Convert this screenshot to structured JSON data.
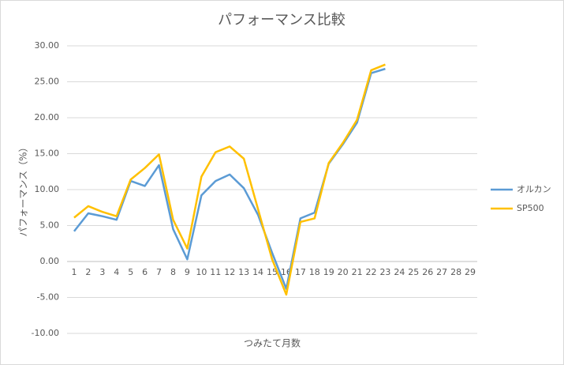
{
  "chart_data": {
    "type": "line",
    "title": "パフォーマンス比較",
    "x_label": "つみたて月数",
    "y_label": "パフォーマンス（%）",
    "categories": [
      "1",
      "2",
      "3",
      "4",
      "5",
      "6",
      "7",
      "8",
      "9",
      "10",
      "11",
      "12",
      "13",
      "14",
      "15",
      "16",
      "17",
      "18",
      "19",
      "20",
      "21",
      "22",
      "23",
      "24",
      "25",
      "26",
      "27",
      "28",
      "29"
    ],
    "series": [
      {
        "name": "オルカン",
        "color": "#5b9bd5",
        "values": [
          4.2,
          6.7,
          6.3,
          5.8,
          11.2,
          10.5,
          13.4,
          4.5,
          0.3,
          9.2,
          11.2,
          12.1,
          10.2,
          6.5,
          1.2,
          -3.8,
          6.0,
          6.8,
          13.6,
          16.3,
          19.3,
          26.2,
          26.8,
          null,
          null,
          null,
          null,
          null,
          null
        ]
      },
      {
        "name": "SP500",
        "color": "#ffc000",
        "values": [
          6.1,
          7.7,
          6.9,
          6.3,
          11.4,
          13.0,
          14.9,
          5.8,
          1.8,
          11.8,
          15.2,
          16.0,
          14.3,
          7.3,
          0.3,
          -4.6,
          5.5,
          6.0,
          13.7,
          16.5,
          19.7,
          26.6,
          27.4,
          null,
          null,
          null,
          null,
          null,
          null
        ]
      }
    ],
    "ylim": [
      -10,
      30
    ],
    "yticks": [
      {
        "value": -10,
        "label": "-10.00"
      },
      {
        "value": -5,
        "label": "-5.00"
      },
      {
        "value": 0,
        "label": "0.00"
      },
      {
        "value": 5,
        "label": "5.00"
      },
      {
        "value": 10,
        "label": "10.00"
      },
      {
        "value": 15,
        "label": "15.00"
      },
      {
        "value": 20,
        "label": "20.00"
      },
      {
        "value": 25,
        "label": "25.00"
      },
      {
        "value": 30,
        "label": "30.00"
      }
    ],
    "grid": true,
    "legend": "right"
  }
}
